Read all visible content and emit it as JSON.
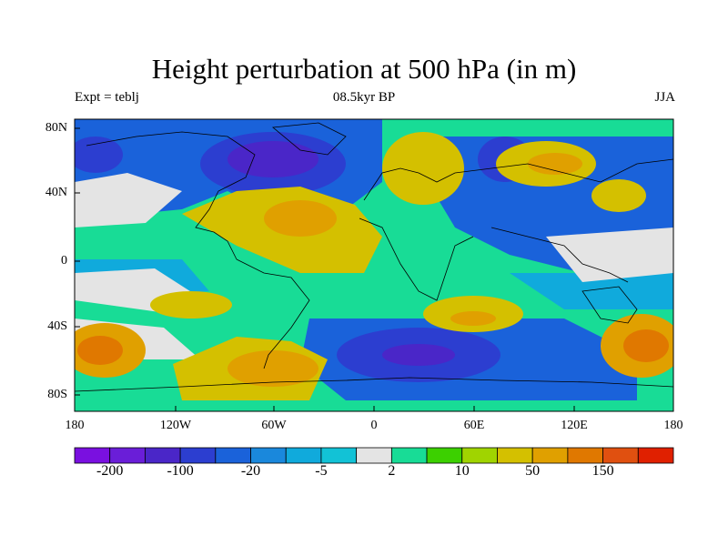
{
  "title": "Height perturbation at 500 hPa (in m)",
  "subtitle_left": "Expt = teblj",
  "subtitle_center": "08.5kyr BP",
  "subtitle_right": "JJA",
  "lat_ticks": [
    "80N",
    "40N",
    "0",
    "40S",
    "80S"
  ],
  "lon_ticks": [
    "180",
    "120W",
    "60W",
    "0",
    "60E",
    "120E",
    "180"
  ],
  "colorbar": {
    "colors": [
      "#7a10e0",
      "#6a1ed8",
      "#4a26c8",
      "#2c3ed0",
      "#1a62da",
      "#1a88dc",
      "#10aadc",
      "#12c2d6",
      "#e4e4e4",
      "#18dc96",
      "#3cd000",
      "#a0d400",
      "#d4c000",
      "#e0a000",
      "#e07800",
      "#e05010",
      "#e02000"
    ],
    "labels": [
      "-200",
      "-100",
      "-20",
      "-5",
      "2",
      "10",
      "50",
      "150"
    ]
  }
}
